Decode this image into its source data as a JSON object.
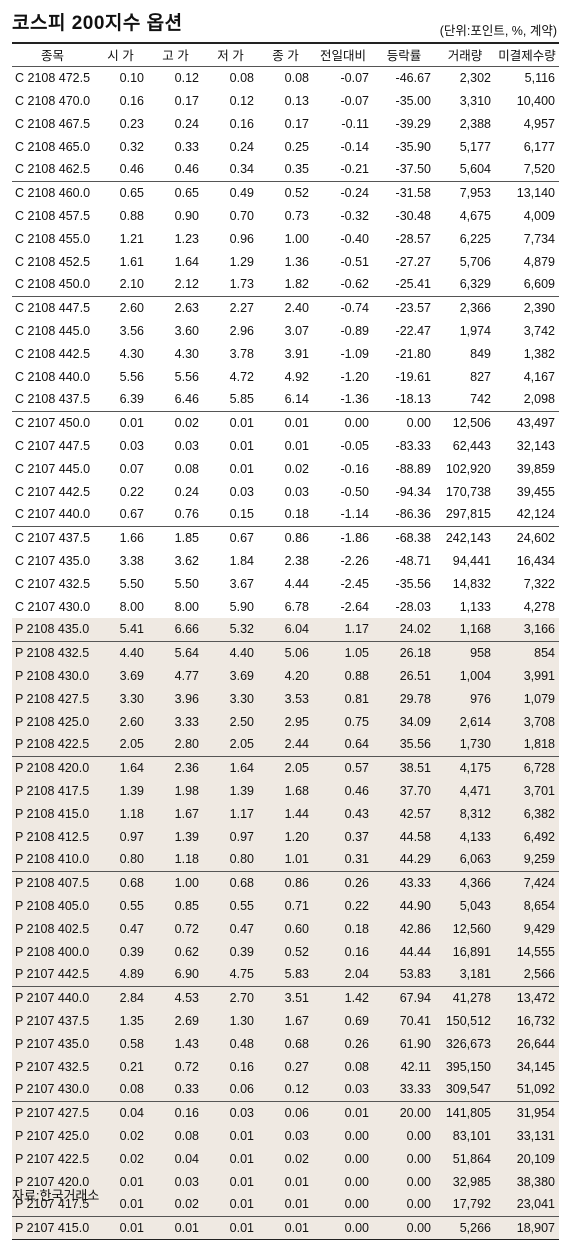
{
  "title": "코스피 200지수 옵션",
  "unit": "(단위:포인트, %, 계약)",
  "columns": [
    "종목",
    "시 가",
    "고 가",
    "저 가",
    "종 가",
    "전일대비",
    "등락률",
    "거래량",
    "미결제수량"
  ],
  "rows": [
    [
      "C 2108 472.5",
      "0.10",
      "0.12",
      "0.08",
      "0.08",
      "-0.07",
      "-46.67",
      "2,302",
      "5,116"
    ],
    [
      "C 2108 470.0",
      "0.16",
      "0.17",
      "0.12",
      "0.13",
      "-0.07",
      "-35.00",
      "3,310",
      "10,400"
    ],
    [
      "C 2108 467.5",
      "0.23",
      "0.24",
      "0.16",
      "0.17",
      "-0.11",
      "-39.29",
      "2,388",
      "4,957"
    ],
    [
      "C 2108 465.0",
      "0.32",
      "0.33",
      "0.24",
      "0.25",
      "-0.14",
      "-35.90",
      "5,177",
      "6,177"
    ],
    [
      "C 2108 462.5",
      "0.46",
      "0.46",
      "0.34",
      "0.35",
      "-0.21",
      "-37.50",
      "5,604",
      "7,520"
    ],
    [
      "C 2108 460.0",
      "0.65",
      "0.65",
      "0.49",
      "0.52",
      "-0.24",
      "-31.58",
      "7,953",
      "13,140"
    ],
    [
      "C 2108 457.5",
      "0.88",
      "0.90",
      "0.70",
      "0.73",
      "-0.32",
      "-30.48",
      "4,675",
      "4,009"
    ],
    [
      "C 2108 455.0",
      "1.21",
      "1.23",
      "0.96",
      "1.00",
      "-0.40",
      "-28.57",
      "6,225",
      "7,734"
    ],
    [
      "C 2108 452.5",
      "1.61",
      "1.64",
      "1.29",
      "1.36",
      "-0.51",
      "-27.27",
      "5,706",
      "4,879"
    ],
    [
      "C 2108 450.0",
      "2.10",
      "2.12",
      "1.73",
      "1.82",
      "-0.62",
      "-25.41",
      "6,329",
      "6,609"
    ],
    [
      "C 2108 447.5",
      "2.60",
      "2.63",
      "2.27",
      "2.40",
      "-0.74",
      "-23.57",
      "2,366",
      "2,390"
    ],
    [
      "C 2108 445.0",
      "3.56",
      "3.60",
      "2.96",
      "3.07",
      "-0.89",
      "-22.47",
      "1,974",
      "3,742"
    ],
    [
      "C 2108 442.5",
      "4.30",
      "4.30",
      "3.78",
      "3.91",
      "-1.09",
      "-21.80",
      "849",
      "1,382"
    ],
    [
      "C 2108 440.0",
      "5.56",
      "5.56",
      "4.72",
      "4.92",
      "-1.20",
      "-19.61",
      "827",
      "4,167"
    ],
    [
      "C 2108 437.5",
      "6.39",
      "6.46",
      "5.85",
      "6.14",
      "-1.36",
      "-18.13",
      "742",
      "2,098"
    ],
    [
      "C 2107 450.0",
      "0.01",
      "0.02",
      "0.01",
      "0.01",
      "0.00",
      "0.00",
      "12,506",
      "43,497"
    ],
    [
      "C 2107 447.5",
      "0.03",
      "0.03",
      "0.01",
      "0.01",
      "-0.05",
      "-83.33",
      "62,443",
      "32,143"
    ],
    [
      "C 2107 445.0",
      "0.07",
      "0.08",
      "0.01",
      "0.02",
      "-0.16",
      "-88.89",
      "102,920",
      "39,859"
    ],
    [
      "C 2107 442.5",
      "0.22",
      "0.24",
      "0.03",
      "0.03",
      "-0.50",
      "-94.34",
      "170,738",
      "39,455"
    ],
    [
      "C 2107 440.0",
      "0.67",
      "0.76",
      "0.15",
      "0.18",
      "-1.14",
      "-86.36",
      "297,815",
      "42,124"
    ],
    [
      "C 2107 437.5",
      "1.66",
      "1.85",
      "0.67",
      "0.86",
      "-1.86",
      "-68.38",
      "242,143",
      "24,602"
    ],
    [
      "C 2107 435.0",
      "3.38",
      "3.62",
      "1.84",
      "2.38",
      "-2.26",
      "-48.71",
      "94,441",
      "16,434"
    ],
    [
      "C 2107 432.5",
      "5.50",
      "5.50",
      "3.67",
      "4.44",
      "-2.45",
      "-35.56",
      "14,832",
      "7,322"
    ],
    [
      "C 2107 430.0",
      "8.00",
      "8.00",
      "5.90",
      "6.78",
      "-2.64",
      "-28.03",
      "1,133",
      "4,278"
    ],
    [
      "P 2108 435.0",
      "5.41",
      "6.66",
      "5.32",
      "6.04",
      "1.17",
      "24.02",
      "1,168",
      "3,166"
    ],
    [
      "P 2108 432.5",
      "4.40",
      "5.64",
      "4.40",
      "5.06",
      "1.05",
      "26.18",
      "958",
      "854"
    ],
    [
      "P 2108 430.0",
      "3.69",
      "4.77",
      "3.69",
      "4.20",
      "0.88",
      "26.51",
      "1,004",
      "3,991"
    ],
    [
      "P 2108 427.5",
      "3.30",
      "3.96",
      "3.30",
      "3.53",
      "0.81",
      "29.78",
      "976",
      "1,079"
    ],
    [
      "P 2108 425.0",
      "2.60",
      "3.33",
      "2.50",
      "2.95",
      "0.75",
      "34.09",
      "2,614",
      "3,708"
    ],
    [
      "P 2108 422.5",
      "2.05",
      "2.80",
      "2.05",
      "2.44",
      "0.64",
      "35.56",
      "1,730",
      "1,818"
    ],
    [
      "P 2108 420.0",
      "1.64",
      "2.36",
      "1.64",
      "2.05",
      "0.57",
      "38.51",
      "4,175",
      "6,728"
    ],
    [
      "P 2108 417.5",
      "1.39",
      "1.98",
      "1.39",
      "1.68",
      "0.46",
      "37.70",
      "4,471",
      "3,701"
    ],
    [
      "P 2108 415.0",
      "1.18",
      "1.67",
      "1.17",
      "1.44",
      "0.43",
      "42.57",
      "8,312",
      "6,382"
    ],
    [
      "P 2108 412.5",
      "0.97",
      "1.39",
      "0.97",
      "1.20",
      "0.37",
      "44.58",
      "4,133",
      "6,492"
    ],
    [
      "P 2108 410.0",
      "0.80",
      "1.18",
      "0.80",
      "1.01",
      "0.31",
      "44.29",
      "6,063",
      "9,259"
    ],
    [
      "P 2108 407.5",
      "0.68",
      "1.00",
      "0.68",
      "0.86",
      "0.26",
      "43.33",
      "4,366",
      "7,424"
    ],
    [
      "P 2108 405.0",
      "0.55",
      "0.85",
      "0.55",
      "0.71",
      "0.22",
      "44.90",
      "5,043",
      "8,654"
    ],
    [
      "P 2108 402.5",
      "0.47",
      "0.72",
      "0.47",
      "0.60",
      "0.18",
      "42.86",
      "12,560",
      "9,429"
    ],
    [
      "P 2108 400.0",
      "0.39",
      "0.62",
      "0.39",
      "0.52",
      "0.16",
      "44.44",
      "16,891",
      "14,555"
    ],
    [
      "P 2107 442.5",
      "4.89",
      "6.90",
      "4.75",
      "5.83",
      "2.04",
      "53.83",
      "3,181",
      "2,566"
    ],
    [
      "P 2107 440.0",
      "2.84",
      "4.53",
      "2.70",
      "3.51",
      "1.42",
      "67.94",
      "41,278",
      "13,472"
    ],
    [
      "P 2107 437.5",
      "1.35",
      "2.69",
      "1.30",
      "1.67",
      "0.69",
      "70.41",
      "150,512",
      "16,732"
    ],
    [
      "P 2107 435.0",
      "0.58",
      "1.43",
      "0.48",
      "0.68",
      "0.26",
      "61.90",
      "326,673",
      "26,644"
    ],
    [
      "P 2107 432.5",
      "0.21",
      "0.72",
      "0.16",
      "0.27",
      "0.08",
      "42.11",
      "395,150",
      "34,145"
    ],
    [
      "P 2107 430.0",
      "0.08",
      "0.33",
      "0.06",
      "0.12",
      "0.03",
      "33.33",
      "309,547",
      "51,092"
    ],
    [
      "P 2107 427.5",
      "0.04",
      "0.16",
      "0.03",
      "0.06",
      "0.01",
      "20.00",
      "141,805",
      "31,954"
    ],
    [
      "P 2107 425.0",
      "0.02",
      "0.08",
      "0.01",
      "0.03",
      "0.00",
      "0.00",
      "83,101",
      "33,131"
    ],
    [
      "P 2107 422.5",
      "0.02",
      "0.04",
      "0.01",
      "0.02",
      "0.00",
      "0.00",
      "51,864",
      "20,109"
    ],
    [
      "P 2107 420.0",
      "0.01",
      "0.03",
      "0.01",
      "0.01",
      "0.00",
      "0.00",
      "32,985",
      "38,380"
    ],
    [
      "P 2107 417.5",
      "0.01",
      "0.02",
      "0.01",
      "0.01",
      "0.00",
      "0.00",
      "17,792",
      "23,041"
    ],
    [
      "P 2107 415.0",
      "0.01",
      "0.01",
      "0.01",
      "0.01",
      "0.00",
      "0.00",
      "5,266",
      "18,907"
    ]
  ],
  "source": "자료:한국거래소",
  "colors": {
    "put_row_bg": "#efe9e2",
    "rule": "#222222"
  }
}
